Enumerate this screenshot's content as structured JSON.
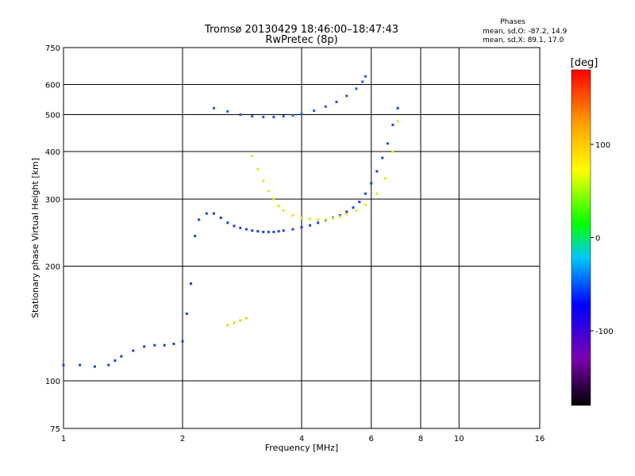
{
  "chart_data": {
    "type": "scatter",
    "title": "Tromsø 20130429 18:46:00–18:47:43",
    "subtitle": "RwPretec (8p)",
    "xlabel": "Frequency [MHz]",
    "ylabel": "Stationary phase Virtual Height [km]",
    "x_scale": "log",
    "y_scale": "log",
    "xlim": [
      1,
      16
    ],
    "ylim": [
      75,
      750
    ],
    "x_ticks": [
      {
        "value": 1,
        "label": "1"
      },
      {
        "value": 2,
        "label": "2"
      },
      {
        "value": 4,
        "label": "4"
      },
      {
        "value": 6,
        "label": "6"
      },
      {
        "value": 8,
        "label": "8"
      },
      {
        "value": 10,
        "label": "10"
      },
      {
        "value": 16,
        "label": "16"
      }
    ],
    "y_ticks": [
      {
        "value": 75,
        "label": "75"
      },
      {
        "value": 100,
        "label": "100"
      },
      {
        "value": 200,
        "label": "200"
      },
      {
        "value": 300,
        "label": "300"
      },
      {
        "value": 400,
        "label": "400"
      },
      {
        "value": 500,
        "label": "500"
      },
      {
        "value": 600,
        "label": "600"
      },
      {
        "value": 750,
        "label": "750"
      }
    ],
    "x_gridlines": [
      2,
      4,
      6,
      8,
      10
    ],
    "y_gridlines": [
      100,
      200,
      300,
      400,
      500,
      600
    ],
    "grid": true,
    "legend": {
      "title": "Phases",
      "lines": [
        "mean, sd,O: -87.2, 14.9",
        "mean, sd,X:  89.1, 17.0"
      ],
      "position": "top-right"
    },
    "colorbar": {
      "label": "[deg]",
      "range": [
        -180,
        180
      ],
      "ticks": [
        {
          "value": 100,
          "label": "100"
        },
        {
          "value": 0,
          "label": "0"
        },
        {
          "value": -100,
          "label": "-100"
        }
      ],
      "colors": [
        "#000000",
        "#7a00b0",
        "#0000ff",
        "#00c8ff",
        "#00ff00",
        "#ffff00",
        "#ffa000",
        "#ff0000"
      ]
    },
    "series": [
      {
        "mode": "O",
        "phase_deg": -90,
        "color": "#1a3fe8",
        "x": [
          1.0,
          1.1,
          1.2,
          1.3,
          1.35,
          1.4,
          1.5,
          1.6,
          1.7,
          1.8,
          1.9,
          2.0,
          2.05,
          2.1,
          2.15,
          2.2,
          2.3,
          2.4,
          2.5,
          2.6,
          2.7,
          2.8,
          2.9,
          3.0,
          3.1,
          3.2,
          3.3,
          3.4,
          3.5,
          3.6,
          3.8,
          4.0,
          4.2,
          4.4,
          4.6,
          4.8,
          5.0,
          5.2,
          5.4,
          5.6,
          5.8,
          6.0,
          6.2,
          6.4,
          6.6,
          6.8,
          7.0
        ],
        "y": [
          110,
          110,
          109,
          110,
          113,
          116,
          120,
          123,
          124,
          124,
          125,
          127,
          150,
          180,
          240,
          265,
          275,
          275,
          268,
          260,
          255,
          252,
          250,
          248,
          247,
          246,
          246,
          246,
          247,
          248,
          250,
          253,
          256,
          260,
          264,
          268,
          272,
          278,
          285,
          295,
          310,
          330,
          355,
          385,
          420,
          470,
          520
        ]
      },
      {
        "mode": "O-F",
        "phase_deg": -85,
        "color": "#2255ee",
        "x": [
          2.4,
          2.6,
          2.8,
          3.0,
          3.2,
          3.4,
          3.6,
          3.8,
          4.0,
          4.3,
          4.6,
          4.9,
          5.2,
          5.5,
          5.7,
          5.8
        ],
        "y": [
          520,
          510,
          500,
          495,
          493,
          493,
          495,
          498,
          502,
          512,
          525,
          540,
          560,
          585,
          610,
          630
        ]
      },
      {
        "mode": "X",
        "phase_deg": 90,
        "color": "#e8e800",
        "x": [
          3.0,
          3.1,
          3.2,
          3.3,
          3.4,
          3.5,
          3.6,
          3.8,
          4.0,
          4.2,
          4.4,
          4.6,
          4.8,
          5.0,
          5.2,
          5.5,
          5.8,
          6.2,
          6.5,
          6.8,
          7.0
        ],
        "y": [
          390,
          360,
          335,
          315,
          300,
          288,
          280,
          272,
          268,
          266,
          265,
          265,
          267,
          270,
          274,
          280,
          290,
          310,
          340,
          400,
          480
        ]
      },
      {
        "mode": "X-low",
        "phase_deg": 100,
        "color": "#e8d800",
        "x": [
          2.6,
          2.7,
          2.8,
          2.9
        ],
        "y": [
          140,
          142,
          144,
          146
        ]
      }
    ]
  }
}
